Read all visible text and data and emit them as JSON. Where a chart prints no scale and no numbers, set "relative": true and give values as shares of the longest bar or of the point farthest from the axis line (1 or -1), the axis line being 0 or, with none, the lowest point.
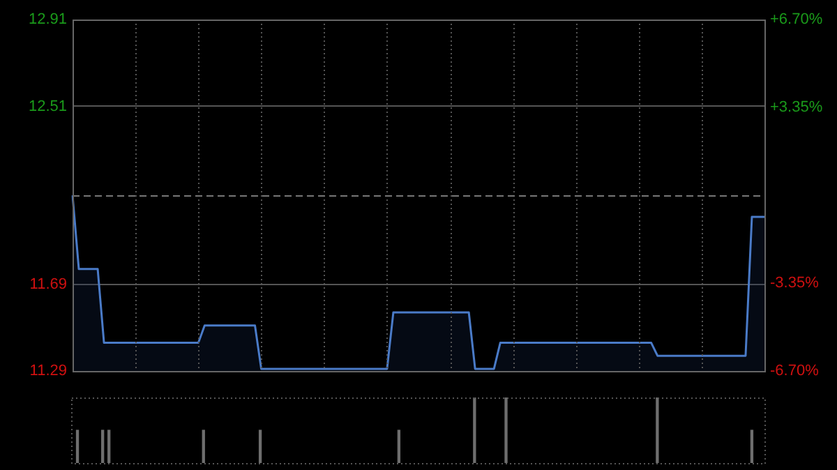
{
  "chart_data": [
    {
      "type": "area",
      "categories": [
        null,
        null,
        null,
        null,
        null,
        null,
        null,
        null,
        null,
        null,
        null,
        null,
        null,
        null,
        null,
        null,
        null,
        null,
        null,
        null,
        null,
        null,
        null,
        null,
        null,
        null,
        null,
        null,
        null,
        null,
        null,
        null,
        null,
        null,
        null,
        null,
        null,
        null,
        null,
        null,
        null,
        null,
        null,
        null,
        null,
        null,
        null,
        null,
        null,
        null,
        null,
        null,
        null,
        null,
        null,
        null,
        null,
        null,
        null,
        null,
        null,
        null,
        null,
        null,
        null,
        null,
        null,
        null,
        null,
        null,
        null,
        null,
        null,
        null,
        null,
        null,
        null,
        null,
        null,
        null,
        null,
        null,
        null,
        null,
        null,
        null,
        null,
        null,
        null,
        null,
        null,
        null,
        null,
        null,
        null,
        null,
        null,
        null,
        null,
        null,
        null,
        null,
        null,
        null,
        null,
        null,
        null,
        null,
        null,
        null,
        null
      ],
      "series": [
        {
          "color": "#4a7bc8",
          "values": [
            12.1,
            11.76,
            11.76,
            11.76,
            11.76,
            11.42,
            11.42,
            11.42,
            11.42,
            11.42,
            11.42,
            11.42,
            11.42,
            11.42,
            11.42,
            11.42,
            11.42,
            11.42,
            11.42,
            11.42,
            11.42,
            11.5,
            11.5,
            11.5,
            11.5,
            11.5,
            11.5,
            11.5,
            11.5,
            11.5,
            11.3,
            11.3,
            11.3,
            11.3,
            11.3,
            11.3,
            11.3,
            11.3,
            11.3,
            11.3,
            11.3,
            11.3,
            11.3,
            11.3,
            11.3,
            11.3,
            11.3,
            11.3,
            11.3,
            11.3,
            11.3,
            11.56,
            11.56,
            11.56,
            11.56,
            11.56,
            11.56,
            11.56,
            11.56,
            11.56,
            11.56,
            11.56,
            11.56,
            11.56,
            11.3,
            11.3,
            11.3,
            11.3,
            11.42,
            11.42,
            11.42,
            11.42,
            11.42,
            11.42,
            11.42,
            11.42,
            11.42,
            11.42,
            11.42,
            11.42,
            11.42,
            11.42,
            11.42,
            11.42,
            11.42,
            11.42,
            11.42,
            11.42,
            11.42,
            11.42,
            11.42,
            11.42,
            11.42,
            11.36,
            11.36,
            11.36,
            11.36,
            11.36,
            11.36,
            11.36,
            11.36,
            11.36,
            11.36,
            11.36,
            11.36,
            11.36,
            11.36,
            11.36,
            12.0,
            12.0,
            12.0
          ]
        }
      ],
      "ylim": [
        11.29,
        12.91
      ],
      "yticks": [
        11.29,
        11.69,
        12.51,
        12.91
      ],
      "y2lim": [
        -6.7,
        6.7
      ],
      "y2ticks": [
        {
          "value": -6.7,
          "label": "-6.70%"
        },
        {
          "value": -3.35,
          "label": "-3.35%"
        },
        {
          "value": 3.35,
          "label": "+3.35%"
        },
        {
          "value": 6.7,
          "label": "+6.70%"
        }
      ],
      "ref_lines": [
        {
          "axis": "y",
          "value": 12.1,
          "label": null,
          "line_style": "dashed"
        }
      ],
      "grid": true,
      "tick_labels": "y"
    },
    {
      "type": "bar",
      "relative": true,
      "categories": [
        null,
        null,
        null,
        null,
        null,
        null,
        null,
        null,
        null,
        null,
        null,
        null,
        null,
        null,
        null,
        null,
        null,
        null,
        null,
        null,
        null,
        null,
        null,
        null,
        null,
        null,
        null,
        null,
        null,
        null,
        null,
        null,
        null,
        null,
        null,
        null,
        null,
        null,
        null,
        null,
        null,
        null,
        null,
        null,
        null,
        null,
        null,
        null,
        null,
        null,
        null,
        null,
        null,
        null,
        null,
        null,
        null,
        null,
        null,
        null,
        null,
        null,
        null,
        null,
        null,
        null,
        null,
        null,
        null,
        null,
        null,
        null,
        null,
        null,
        null,
        null,
        null,
        null,
        null,
        null,
        null,
        null,
        null,
        null,
        null,
        null,
        null,
        null,
        null,
        null,
        null,
        null,
        null,
        null,
        null,
        null,
        null,
        null,
        null,
        null,
        null,
        null,
        null,
        null,
        null,
        null,
        null,
        null,
        null,
        null,
        null
      ],
      "color": "#6e6e6e",
      "values": [
        null,
        0.5,
        null,
        null,
        null,
        0.5,
        0.5,
        null,
        null,
        null,
        null,
        null,
        null,
        null,
        null,
        null,
        null,
        null,
        null,
        null,
        null,
        0.5,
        null,
        null,
        null,
        null,
        null,
        null,
        null,
        null,
        0.5,
        null,
        null,
        null,
        null,
        null,
        null,
        null,
        null,
        null,
        null,
        null,
        null,
        null,
        null,
        null,
        null,
        null,
        null,
        null,
        null,
        null,
        0.5,
        null,
        null,
        null,
        null,
        null,
        null,
        null,
        null,
        null,
        null,
        null,
        1,
        null,
        null,
        null,
        null,
        1,
        null,
        null,
        null,
        null,
        null,
        null,
        null,
        null,
        null,
        null,
        null,
        null,
        null,
        null,
        null,
        null,
        null,
        null,
        null,
        null,
        null,
        null,
        null,
        1,
        null,
        null,
        null,
        null,
        null,
        null,
        null,
        null,
        null,
        null,
        null,
        null,
        null,
        null,
        0.5,
        null,
        null
      ],
      "tick_labels": false
    }
  ]
}
